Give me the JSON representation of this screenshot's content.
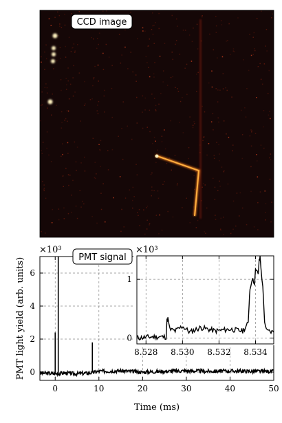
{
  "ccd": {
    "label": "CCD image",
    "colors": {
      "background": "#150707",
      "hot": "#fff2c0",
      "track": "#f07a1a",
      "dim": "#8a2a10"
    }
  },
  "chart_data": [
    {
      "type": "line",
      "label": "PMT signal",
      "xlabel": "Time (ms)",
      "ylabel": "PMT light yield (arb. units)",
      "y_multiplier": "×10³",
      "xlim": [
        -3.5,
        50
      ],
      "ylim": [
        -0.5,
        7.0
      ],
      "x_ticks": [
        "0",
        "10",
        "20",
        "30",
        "40",
        "50"
      ],
      "x_tick_values": [
        0,
        10,
        20,
        30,
        40,
        50
      ],
      "y_ticks": [
        "0",
        "2",
        "4",
        "6"
      ],
      "y_tick_values": [
        0,
        2,
        4,
        6
      ],
      "grid": true,
      "spikes": [
        {
          "x": 0.0,
          "y": 2.4
        },
        {
          "x": 0.7,
          "y": 7.0
        },
        {
          "x": 8.5,
          "y": 1.8
        }
      ],
      "baseline": {
        "x": [
          -3.5,
          0,
          2,
          5,
          8,
          10,
          15,
          20,
          25,
          30,
          35,
          40,
          45,
          50
        ],
        "y": [
          -0.05,
          -0.1,
          -0.05,
          -0.1,
          -0.05,
          0.05,
          0.08,
          0.0,
          0.05,
          0.08,
          0.05,
          0.07,
          0.05,
          0.05
        ]
      },
      "color": "#000000"
    },
    {
      "type": "line",
      "label": "inset",
      "y_multiplier": "×10³",
      "xlim": [
        8.5275,
        8.535
      ],
      "ylim": [
        -0.1,
        1.4
      ],
      "x_ticks": [
        "8.528",
        "8.530",
        "8.532",
        "8.534"
      ],
      "x_tick_values": [
        8.528,
        8.53,
        8.532,
        8.534
      ],
      "y_ticks": [
        "0",
        "1"
      ],
      "y_tick_values": [
        0,
        1
      ],
      "grid": true,
      "x": [
        8.5275,
        8.5283,
        8.5291,
        8.52915,
        8.5292,
        8.5293,
        8.5296,
        8.53,
        8.5304,
        8.531,
        8.5318,
        8.5326,
        8.5333,
        8.5336,
        8.53365,
        8.5337,
        8.5338,
        8.53395,
        8.534,
        8.53415,
        8.5342,
        8.53425,
        8.5344,
        8.5345,
        8.5346,
        8.535
      ],
      "y": [
        0.0,
        0.02,
        0.02,
        0.3,
        0.33,
        0.15,
        0.12,
        0.2,
        0.1,
        0.18,
        0.12,
        0.15,
        0.12,
        0.25,
        0.6,
        0.85,
        1.0,
        0.95,
        1.15,
        1.1,
        1.3,
        1.38,
        0.85,
        0.3,
        0.12,
        0.1
      ],
      "color": "#000000"
    }
  ]
}
